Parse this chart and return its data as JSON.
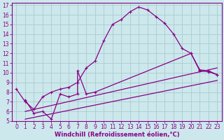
{
  "bg_color": "#cce8ec",
  "line_color": "#880088",
  "grid_color": "#aacccc",
  "xlabel": "Windchill (Refroidissement éolien,°C)",
  "xlim": [
    -0.5,
    23.5
  ],
  "ylim": [
    5,
    17.2
  ],
  "yticks": [
    5,
    6,
    7,
    8,
    9,
    10,
    11,
    12,
    13,
    14,
    15,
    16,
    17
  ],
  "xticks": [
    0,
    1,
    2,
    3,
    4,
    5,
    6,
    7,
    8,
    9,
    10,
    11,
    12,
    13,
    14,
    15,
    16,
    17,
    18,
    19,
    20,
    21,
    22,
    23
  ],
  "curve1_x": [
    0,
    1,
    2,
    3,
    4,
    5,
    6,
    7,
    8,
    9,
    10,
    11,
    12,
    13,
    14,
    15,
    16,
    17,
    18,
    19,
    20,
    21,
    22,
    23
  ],
  "curve1_y": [
    8.3,
    7.0,
    6.2,
    7.5,
    8.0,
    8.3,
    8.5,
    9.0,
    10.5,
    11.2,
    13.3,
    15.0,
    15.5,
    16.3,
    16.8,
    16.5,
    15.8,
    15.1,
    14.0,
    12.5,
    12.0,
    10.2,
    10.1,
    9.8
  ],
  "curve2_x": [
    1,
    2,
    3,
    4,
    5,
    6,
    7,
    7,
    8,
    9,
    20,
    21,
    22,
    23
  ],
  "curve2_y": [
    7.2,
    5.8,
    6.0,
    5.2,
    7.8,
    7.5,
    7.8,
    10.2,
    7.8,
    8.0,
    12.0,
    10.3,
    10.2,
    9.8
  ],
  "line3_x": [
    1,
    23
  ],
  "line3_y": [
    6.0,
    10.5
  ],
  "line4_x": [
    1,
    23
  ],
  "line4_y": [
    5.2,
    9.2
  ],
  "tick_fontsize": 5.5,
  "xlabel_fontsize": 6.0
}
